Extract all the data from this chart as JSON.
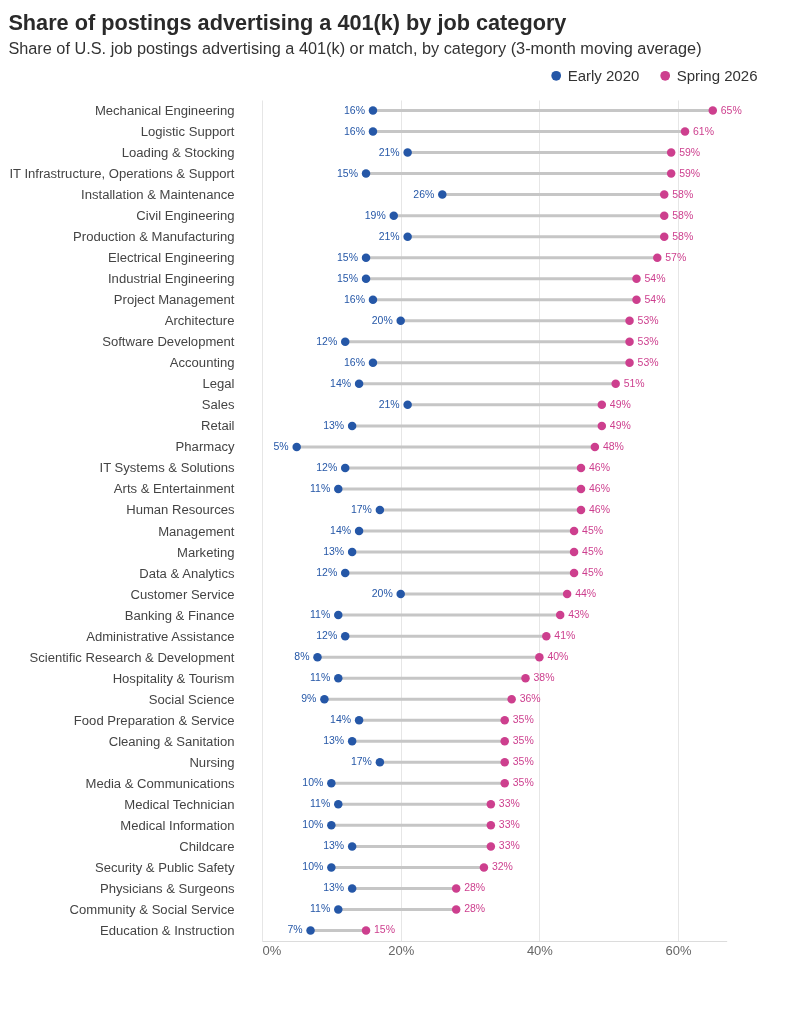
{
  "chart_data": {
    "type": "lollipop",
    "orientation": "horizontal",
    "title": "Share of postings advertising a 401(k) by job category",
    "subtitle": "Share of U.S. job postings advertising a 401(k) or match, by category (3-month moving average)",
    "categories": [
      "Mechanical Engineering",
      "Logistic Support",
      "Loading & Stocking",
      "IT Infrastructure, Operations & Support",
      "Installation & Maintenance",
      "Civil Engineering",
      "Production & Manufacturing",
      "Electrical Engineering",
      "Industrial Engineering",
      "Project Management",
      "Architecture",
      "Software Development",
      "Accounting",
      "Legal",
      "Sales",
      "Retail",
      "Pharmacy",
      "IT Systems & Solutions",
      "Arts & Entertainment",
      "Human Resources",
      "Management",
      "Marketing",
      "Data & Analytics",
      "Customer Service",
      "Banking & Finance",
      "Administrative Assistance",
      "Scientific Research & Development",
      "Hospitality & Tourism",
      "Social Science",
      "Food Preparation & Service",
      "Cleaning & Sanitation",
      "Nursing",
      "Media & Communications",
      "Medical Technician",
      "Medical Information",
      "Childcare",
      "Security & Public Safety",
      "Physicians & Surgeons",
      "Community & Social Service",
      "Education & Instruction"
    ],
    "series": [
      {
        "name": "Early 2020",
        "color": "#2557a7",
        "values": [
          16,
          16,
          21,
          15,
          26,
          19,
          21,
          15,
          15,
          16,
          20,
          12,
          16,
          14,
          21,
          13,
          5,
          12,
          11,
          17,
          14,
          13,
          12,
          20,
          11,
          12,
          8,
          11,
          9,
          14,
          13,
          17,
          10,
          11,
          10,
          13,
          10,
          13,
          11,
          7
        ],
        "value_labels": [
          "16%",
          "16%",
          "21%",
          "15%",
          "26%",
          "19%",
          "21%",
          "15%",
          "15%",
          "16%",
          "20%",
          "12%",
          "16%",
          "14%",
          "21%",
          "13%",
          "5%",
          "12%",
          "11%",
          "17%",
          "14%",
          "13%",
          "12%",
          "20%",
          "11%",
          "12%",
          "8%",
          "11%",
          "9%",
          "14%",
          "13%",
          "17%",
          "10%",
          "11%",
          "10%",
          "13%",
          "10%",
          "13%",
          "11%",
          "7%"
        ]
      },
      {
        "name": "Spring 2026",
        "color": "#cd3f8e",
        "values": [
          65,
          61,
          59,
          59,
          58,
          58,
          58,
          57,
          54,
          54,
          53,
          53,
          53,
          51,
          49,
          49,
          48,
          46,
          46,
          46,
          45,
          45,
          45,
          44,
          43,
          41,
          40,
          38,
          36,
          35,
          35,
          35,
          35,
          33,
          33,
          33,
          32,
          28,
          28,
          15
        ],
        "value_labels": [
          "65%",
          "61%",
          "59%",
          "59%",
          "58%",
          "58%",
          "58%",
          "57%",
          "54%",
          "54%",
          "53%",
          "53%",
          "53%",
          "51%",
          "49%",
          "49%",
          "48%",
          "46%",
          "46%",
          "46%",
          "45%",
          "45%",
          "45%",
          "44%",
          "43%",
          "41%",
          "40%",
          "38%",
          "36%",
          "35%",
          "35%",
          "35%",
          "35%",
          "33%",
          "33%",
          "33%",
          "32%",
          "28%",
          "28%",
          "15%"
        ]
      }
    ],
    "xlim": [
      0,
      67
    ],
    "xticks": [
      {
        "value": 0,
        "label": "0%"
      },
      {
        "value": 20,
        "label": "20%"
      },
      {
        "value": 40,
        "label": "40%"
      },
      {
        "value": 60,
        "label": "60%"
      }
    ],
    "grid": "x",
    "legend": "top right",
    "marker": "circle"
  }
}
